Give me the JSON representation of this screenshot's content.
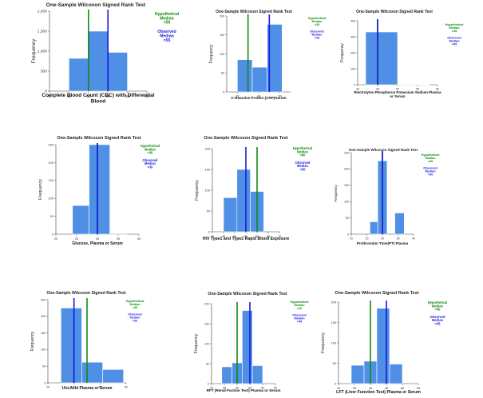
{
  "colors": {
    "bar": "#4f8fe6",
    "bar_stroke": "#ffffff",
    "hypothetical": "#138a13",
    "observed": "#1a1adc"
  },
  "chart_data": [
    {
      "type": "bar",
      "title": "One-Sample Wilcoxon Signed Rank Test",
      "xlabel": "Complete Blood Count (CBC) with Differential Blood",
      "ylabel": "Frequency",
      "xlim": [
        40,
        65
      ],
      "xticks": [
        "40",
        "45",
        "50",
        "55",
        "60",
        "65"
      ],
      "ylim": [
        0,
        2000
      ],
      "yticks": [
        "0",
        "500",
        "1,000",
        "1,500",
        "2,000"
      ],
      "bins": [
        {
          "x0": 45,
          "x1": 50,
          "value": 820
        },
        {
          "x0": 50,
          "x1": 55,
          "value": 1500
        },
        {
          "x0": 55,
          "x1": 60,
          "value": 970
        }
      ],
      "hypothetical_median": 50,
      "observed_median": 55,
      "legend": [
        "Hypothetical",
        "Median",
        "=50",
        "Observed",
        "Median",
        "=55"
      ]
    },
    {
      "type": "bar",
      "title": "One-Sample Wilcoxon Signed Rank Test",
      "xlabel": "C-Reactive Protein (CRP)Serum",
      "ylabel": "Frequency",
      "xlim": [
        25,
        55
      ],
      "xticks": [
        "30",
        "40",
        "50"
      ],
      "ylim": [
        0,
        200
      ],
      "yticks": [
        "0",
        "50",
        "100",
        "150",
        "200"
      ],
      "bins": [
        {
          "x0": 30,
          "x1": 37,
          "value": 85
        },
        {
          "x0": 37,
          "x1": 44,
          "value": 65
        },
        {
          "x0": 44,
          "x1": 51,
          "value": 178
        }
      ],
      "hypothetical_median": 35,
      "observed_median": 45,
      "legend": [
        "Hypothetical",
        "Median",
        "=35",
        "Observed",
        "Median",
        "=45"
      ]
    },
    {
      "type": "bar",
      "title": "One-Sample Wilcoxon Signed Rank Test",
      "xlabel": "Electrolytes Phosphorus Potassium Sodium  Plasma or Serum",
      "ylabel": "Frequency",
      "xlim": [
        40,
        60
      ],
      "xticks": [
        "40",
        "45",
        "50",
        "55",
        "60"
      ],
      "ylim": [
        0,
        400
      ],
      "yticks": [
        "0",
        "100",
        "200",
        "300",
        "400"
      ],
      "bins": [
        {
          "x0": 42,
          "x1": 50,
          "value": 330
        },
        {
          "x0": 50,
          "x1": 58,
          "value": 2
        }
      ],
      "hypothetical_median": 45,
      "observed_median": 45,
      "legend": [
        "Hypothetical",
        "Median",
        "=45",
        "Observed",
        "Median",
        "=45"
      ]
    },
    {
      "type": "bar",
      "title": "One-Sample Wilcoxon Signed Rank Test",
      "xlabel": "Glucose, Plasma or Serum",
      "ylabel": "Frequency",
      "xlim": [
        20,
        40
      ],
      "xticks": [
        "20",
        "25",
        "30",
        "35",
        "40"
      ],
      "ylim": [
        0,
        250
      ],
      "yticks": [
        "0",
        "50",
        "100",
        "150",
        "200",
        "250"
      ],
      "bins": [
        {
          "x0": 24,
          "x1": 28,
          "value": 80
        },
        {
          "x0": 28,
          "x1": 33,
          "value": 250
        },
        {
          "x0": 33,
          "x1": 37,
          "value": 2
        }
      ],
      "hypothetical_median": 30,
      "observed_median": 30,
      "legend": [
        "Hypothetical",
        "Median",
        "=30",
        "Observed",
        "Median",
        "=30"
      ]
    },
    {
      "type": "bar",
      "title": "One-Sample Wilcoxon Signed Rank Test",
      "xlabel": "HIV Type1 and Type2  Rapid Blood Exposure",
      "ylabel": "Frequency",
      "xlim": [
        40,
        70
      ],
      "xticks": [
        "40",
        "45",
        "50",
        "55",
        "60",
        "65",
        "70"
      ],
      "ylim": [
        0,
        200
      ],
      "yticks": [
        "0",
        "50",
        "100",
        "150",
        "200"
      ],
      "bins": [
        {
          "x0": 45,
          "x1": 51,
          "value": 82
        },
        {
          "x0": 51,
          "x1": 57,
          "value": 150
        },
        {
          "x0": 57,
          "x1": 63,
          "value": 97
        }
      ],
      "hypothetical_median": 60,
      "observed_median": 55,
      "legend": [
        "Hypothetical",
        "Median",
        "=60",
        "Observed",
        "Median",
        "=55"
      ]
    },
    {
      "type": "bar",
      "title": "One-Sample Wilcoxon Signed Rank Test",
      "xlabel": "Prothrombin Time(PT)  Plasma",
      "ylabel": "Frequency",
      "xlim": [
        20,
        40
      ],
      "xticks": [
        "20",
        "25",
        "30",
        "35",
        "40"
      ],
      "ylim": [
        0,
        250
      ],
      "yticks": [
        "0",
        "50",
        "100",
        "150",
        "200",
        "250"
      ],
      "bins": [
        {
          "x0": 26,
          "x1": 28.5,
          "value": 38
        },
        {
          "x0": 28.5,
          "x1": 31.5,
          "value": 225
        },
        {
          "x0": 34,
          "x1": 37,
          "value": 65
        }
      ],
      "hypothetical_median": 30,
      "observed_median": 30,
      "legend": [
        "Hypothetical",
        "Median",
        "=30",
        "Observed",
        "Median",
        "=30"
      ]
    },
    {
      "type": "bar",
      "title": "One-Sample Wilcoxon Signed Rank Test",
      "xlabel": "UricAcid  Plasma or Serum",
      "ylabel": "Frequency",
      "xlim": [
        20,
        50
      ],
      "xticks": [
        "20",
        "30",
        "40",
        "50"
      ],
      "ylim": [
        0,
        250
      ],
      "yticks": [
        "0",
        "50",
        "100",
        "150",
        "200",
        "250"
      ],
      "bins": [
        {
          "x0": 25,
          "x1": 33,
          "value": 225
        },
        {
          "x0": 33,
          "x1": 41,
          "value": 62
        },
        {
          "x0": 41,
          "x1": 49,
          "value": 40
        }
      ],
      "hypothetical_median": 35,
      "observed_median": 30,
      "legend": [
        "Hypothetical",
        "Median",
        "=35",
        "Observed",
        "Median",
        "=30"
      ]
    },
    {
      "type": "bar",
      "title": "One-Sample Wilcoxon Signed Rank Test",
      "xlabel": "RFT (Renal Fuction Test) Plasma or Serum",
      "ylabel": "Frequency",
      "xlim": [
        30,
        55
      ],
      "xticks": [
        "30",
        "35",
        "40",
        "45",
        "50",
        "55"
      ],
      "ylim": [
        0,
        200
      ],
      "yticks": [
        "0",
        "50",
        "100",
        "150",
        "200"
      ],
      "bins": [
        {
          "x0": 34,
          "x1": 38,
          "value": 42
        },
        {
          "x0": 38,
          "x1": 42,
          "value": 52
        },
        {
          "x0": 42,
          "x1": 46,
          "value": 183
        },
        {
          "x0": 46,
          "x1": 50,
          "value": 45
        }
      ],
      "hypothetical_median": 40,
      "observed_median": 45,
      "legend": [
        "Hypothetical",
        "Median",
        "=40",
        "Observed",
        "Median",
        "=45"
      ]
    },
    {
      "type": "bar",
      "title": "One-Sample Wilcoxon Signed Rank Test",
      "xlabel": "LFT (Liver Function Test) Plasma or Serum",
      "ylabel": "Frequency",
      "xlim": [
        30,
        55
      ],
      "xticks": [
        "30",
        "35",
        "40",
        "45",
        "50",
        "55"
      ],
      "ylim": [
        0,
        200
      ],
      "yticks": [
        "0",
        "50",
        "100",
        "150",
        "200"
      ],
      "bins": [
        {
          "x0": 34,
          "x1": 38,
          "value": 45
        },
        {
          "x0": 38,
          "x1": 42,
          "value": 55
        },
        {
          "x0": 42,
          "x1": 46,
          "value": 185
        },
        {
          "x0": 46,
          "x1": 50,
          "value": 48
        }
      ],
      "hypothetical_median": 40,
      "observed_median": 45,
      "legend": [
        "Hypothetical",
        "Median",
        "=40",
        "Observed",
        "Median",
        "=45"
      ]
    }
  ]
}
